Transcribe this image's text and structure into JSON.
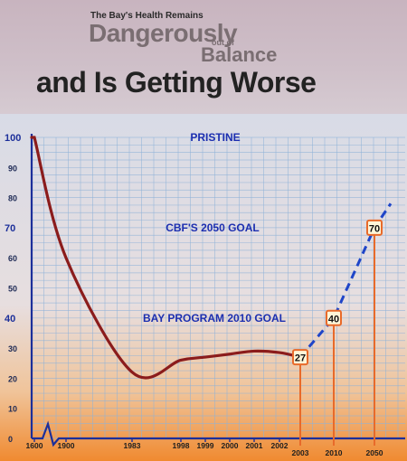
{
  "header": {
    "kicker": "The Bay's Health Remains",
    "line1": "Dangerously",
    "line2_small": "out of",
    "line2": "Balance",
    "headline": "and Is Getting Worse"
  },
  "colors": {
    "curve": "#8b1c1c",
    "projection": "#1f45c8",
    "goal_text": "#1c2fb0",
    "marker": "#e86a2a",
    "axis": "#1c2f9a",
    "grid": "#8fb2d8"
  },
  "chart_data": {
    "type": "line",
    "title": "",
    "xlabel": "",
    "ylabel": "",
    "ylim": [
      0,
      100
    ],
    "y_ticks": [
      0,
      10,
      20,
      30,
      40,
      50,
      60,
      70,
      80,
      90,
      100
    ],
    "y_highlight_ticks": [
      40,
      70,
      100
    ],
    "x_tick_labels": [
      "1600",
      "1900",
      "1983",
      "1998",
      "1999",
      "2000",
      "2001",
      "2002",
      "2003",
      "2010",
      "2050"
    ],
    "grid": true,
    "series": [
      {
        "style": "solid",
        "points": [
          [
            "1600",
            100
          ],
          [
            "1900",
            60
          ],
          [
            "1983",
            22
          ],
          [
            "1998",
            26
          ],
          [
            "1999",
            27
          ],
          [
            "2000",
            28
          ],
          [
            "2001",
            29
          ],
          [
            "2002",
            28.5
          ],
          [
            "2003",
            27
          ]
        ]
      },
      {
        "style": "dashed",
        "points": [
          [
            "2003",
            27
          ],
          [
            "2010",
            40
          ],
          [
            "2050",
            70
          ],
          [
            "2050+",
            78
          ]
        ]
      }
    ],
    "markers": [
      {
        "label": "27",
        "x": "2003",
        "value": 27
      },
      {
        "label": "40",
        "x": "2010",
        "value": 40
      },
      {
        "label": "70",
        "x": "2050",
        "value": 70
      }
    ],
    "annotations": [
      {
        "text": "PRISTINE",
        "value": 100
      },
      {
        "text": "CBF'S 2050 GOAL",
        "value": 70
      },
      {
        "text": "BAY PROGRAM 2010 GOAL",
        "value": 40
      }
    ]
  }
}
